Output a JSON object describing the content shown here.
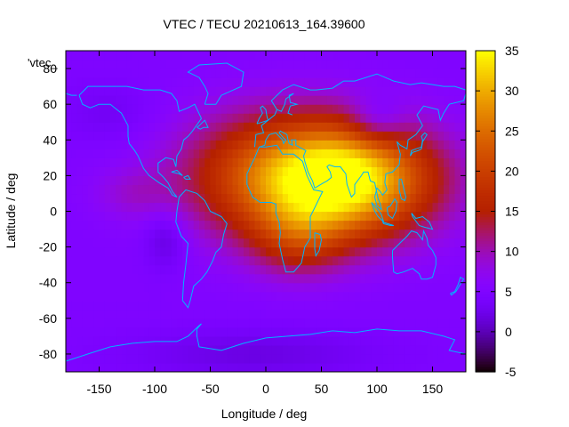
{
  "chart_data": {
    "type": "heatmap",
    "title": "VTEC / TECU 20210613_164.39600",
    "xlabel": "Longitude / deg",
    "ylabel": "Latitude / deg",
    "key_label": "'vtec_",
    "xlim": [
      -180,
      180
    ],
    "ylim": [
      -90,
      90
    ],
    "zlim": [
      -5,
      35
    ],
    "xticks": [
      -150,
      -100,
      -50,
      0,
      50,
      100,
      150
    ],
    "yticks": [
      -80,
      -60,
      -40,
      -20,
      0,
      20,
      40,
      60,
      80
    ],
    "colorbar_ticks": [
      -5,
      0,
      5,
      10,
      15,
      20,
      25,
      30,
      35
    ],
    "grid": false,
    "background_level": 5,
    "features": [
      {
        "lon": 75,
        "lat": 18,
        "sigma_lon": 55,
        "sigma_lat": 22,
        "amp": 27
      },
      {
        "lon": 5,
        "lat": 20,
        "sigma_lon": 60,
        "sigma_lat": 25,
        "amp": 14
      },
      {
        "lon": 30,
        "lat": -15,
        "sigma_lon": 30,
        "sigma_lat": 15,
        "amp": 8
      },
      {
        "lon": 100,
        "lat": 50,
        "sigma_lon": 18,
        "sigma_lat": 10,
        "amp": -6
      },
      {
        "lon": -90,
        "lat": -15,
        "sigma_lon": 14,
        "sigma_lat": 12,
        "amp": -4
      },
      {
        "lon": -140,
        "lat": 55,
        "sigma_lon": 30,
        "sigma_lat": 12,
        "amp": -2
      },
      {
        "lon": -10,
        "lat": -80,
        "sigma_lon": 80,
        "sigma_lat": 10,
        "amp": -3
      },
      {
        "lon": -120,
        "lat": 10,
        "sigma_lon": 25,
        "sigma_lat": 10,
        "amp": 3
      }
    ],
    "colormap": "gnuplot pm3d (black-blue-purple-red-orange-yellow)",
    "coastline_color": "#00b4ff",
    "coastlines": [
      [
        [
          -168,
          65
        ],
        [
          -160,
          70
        ],
        [
          -140,
          70
        ],
        [
          -125,
          70
        ],
        [
          -110,
          68
        ],
        [
          -95,
          68
        ],
        [
          -85,
          66
        ],
        [
          -80,
          62
        ],
        [
          -78,
          56
        ],
        [
          -70,
          58
        ],
        [
          -64,
          60
        ],
        [
          -58,
          52
        ],
        [
          -66,
          45
        ],
        [
          -70,
          42
        ],
        [
          -74,
          40
        ],
        [
          -76,
          35
        ],
        [
          -80,
          31
        ],
        [
          -81,
          25
        ],
        [
          -83,
          29
        ],
        [
          -90,
          30
        ],
        [
          -97,
          27
        ],
        [
          -97,
          22
        ],
        [
          -92,
          19
        ],
        [
          -88,
          16
        ],
        [
          -84,
          11
        ],
        [
          -80,
          8
        ],
        [
          -84,
          9
        ],
        [
          -88,
          13
        ],
        [
          -96,
          16
        ],
        [
          -105,
          20
        ],
        [
          -110,
          24
        ],
        [
          -115,
          31
        ],
        [
          -118,
          34
        ],
        [
          -123,
          38
        ],
        [
          -124,
          42
        ],
        [
          -124,
          48
        ],
        [
          -130,
          55
        ],
        [
          -140,
          60
        ],
        [
          -150,
          60
        ],
        [
          -158,
          58
        ],
        [
          -165,
          60
        ],
        [
          -168,
          65
        ]
      ],
      [
        [
          -78,
          8
        ],
        [
          -72,
          12
        ],
        [
          -62,
          10
        ],
        [
          -55,
          6
        ],
        [
          -50,
          0
        ],
        [
          -40,
          -3
        ],
        [
          -35,
          -7
        ],
        [
          -38,
          -13
        ],
        [
          -40,
          -20
        ],
        [
          -45,
          -23
        ],
        [
          -48,
          -28
        ],
        [
          -53,
          -34
        ],
        [
          -58,
          -38
        ],
        [
          -65,
          -42
        ],
        [
          -68,
          -50
        ],
        [
          -70,
          -54
        ],
        [
          -75,
          -50
        ],
        [
          -74,
          -40
        ],
        [
          -72,
          -30
        ],
        [
          -70,
          -18
        ],
        [
          -76,
          -14
        ],
        [
          -81,
          -6
        ],
        [
          -80,
          0
        ],
        [
          -78,
          8
        ]
      ],
      [
        [
          -55,
          60
        ],
        [
          -45,
          60
        ],
        [
          -40,
          65
        ],
        [
          -22,
          70
        ],
        [
          -20,
          78
        ],
        [
          -35,
          83
        ],
        [
          -60,
          82
        ],
        [
          -70,
          78
        ],
        [
          -60,
          75
        ],
        [
          -55,
          70
        ],
        [
          -52,
          66
        ],
        [
          -55,
          60
        ]
      ],
      [
        [
          -17,
          21
        ],
        [
          -17,
          15
        ],
        [
          -12,
          8
        ],
        [
          -5,
          5
        ],
        [
          5,
          5
        ],
        [
          9,
          4
        ],
        [
          9,
          -1
        ],
        [
          12,
          -6
        ],
        [
          13,
          -12
        ],
        [
          12,
          -18
        ],
        [
          15,
          -27
        ],
        [
          18,
          -34
        ],
        [
          25,
          -34
        ],
        [
          32,
          -29
        ],
        [
          35,
          -20
        ],
        [
          40,
          -15
        ],
        [
          40,
          -10
        ],
        [
          40,
          -3
        ],
        [
          44,
          2
        ],
        [
          51,
          11
        ],
        [
          43,
          12
        ],
        [
          37,
          20
        ],
        [
          33,
          28
        ],
        [
          25,
          32
        ],
        [
          15,
          32
        ],
        [
          10,
          37
        ],
        [
          0,
          36
        ],
        [
          -6,
          36
        ],
        [
          -10,
          30
        ],
        [
          -17,
          21
        ]
      ],
      [
        [
          -10,
          36
        ],
        [
          -9,
          43
        ],
        [
          -2,
          44
        ],
        [
          -4,
          48
        ],
        [
          2,
          51
        ],
        [
          8,
          54
        ],
        [
          10,
          57
        ],
        [
          5,
          62
        ],
        [
          15,
          68
        ],
        [
          25,
          71
        ],
        [
          40,
          68
        ],
        [
          45,
          68
        ],
        [
          60,
          69
        ],
        [
          70,
          73
        ],
        [
          80,
          73
        ],
        [
          100,
          77
        ],
        [
          115,
          73
        ],
        [
          130,
          71
        ],
        [
          140,
          72
        ],
        [
          160,
          70
        ],
        [
          170,
          70
        ],
        [
          180,
          68
        ]
      ],
      [
        [
          -180,
          66
        ],
        [
          -175,
          65
        ],
        [
          -170,
          65
        ]
      ],
      [
        [
          180,
          66
        ],
        [
          178,
          62
        ],
        [
          165,
          60
        ],
        [
          160,
          55
        ],
        [
          157,
          51
        ],
        [
          155,
          57
        ],
        [
          142,
          59
        ],
        [
          136,
          54
        ],
        [
          141,
          48
        ],
        [
          135,
          43
        ],
        [
          128,
          40
        ],
        [
          127,
          35
        ],
        [
          121,
          37
        ],
        [
          118,
          39
        ],
        [
          121,
          32
        ],
        [
          120,
          26
        ],
        [
          114,
          22
        ],
        [
          108,
          21
        ],
        [
          107,
          16
        ],
        [
          109,
          12
        ],
        [
          105,
          9
        ],
        [
          103,
          11
        ],
        [
          100,
          13
        ],
        [
          98,
          8
        ],
        [
          100,
          3
        ],
        [
          104,
          1
        ],
        [
          103,
          4
        ],
        [
          101,
          7
        ],
        [
          98,
          16
        ],
        [
          94,
          17
        ],
        [
          92,
          22
        ],
        [
          88,
          22
        ],
        [
          86,
          20
        ],
        [
          80,
          15
        ],
        [
          80,
          10
        ],
        [
          77,
          8
        ],
        [
          73,
          15
        ],
        [
          72,
          21
        ],
        [
          67,
          25
        ],
        [
          62,
          25
        ],
        [
          57,
          26
        ],
        [
          55,
          25
        ],
        [
          58,
          22
        ],
        [
          59,
          19
        ],
        [
          55,
          17
        ],
        [
          52,
          16
        ],
        [
          44,
          13
        ],
        [
          42,
          17
        ],
        [
          38,
          22
        ],
        [
          35,
          28
        ],
        [
          34,
          31
        ],
        [
          36,
          34
        ],
        [
          30,
          36
        ],
        [
          27,
          37
        ],
        [
          27,
          40
        ],
        [
          23,
          40
        ],
        [
          24,
          37
        ],
        [
          21,
          38
        ],
        [
          20,
          40
        ],
        [
          19,
          43
        ],
        [
          13,
          45
        ],
        [
          12,
          44
        ],
        [
          16,
          41
        ],
        [
          18,
          40
        ],
        [
          16,
          38
        ],
        [
          15,
          40
        ],
        [
          12,
          42
        ],
        [
          9,
          44
        ],
        [
          3,
          43
        ],
        [
          0,
          40
        ],
        [
          -1,
          37
        ],
        [
          -6,
          36
        ]
      ],
      [
        [
          -8,
          49
        ],
        [
          -6,
          52
        ],
        [
          -3,
          55
        ],
        [
          -5,
          58
        ],
        [
          -3,
          59
        ],
        [
          0,
          57
        ],
        [
          1,
          53
        ],
        [
          2,
          51
        ],
        [
          -3,
          50
        ],
        [
          -8,
          49
        ]
      ],
      [
        [
          24,
          54
        ],
        [
          20,
          55
        ],
        [
          22,
          59
        ],
        [
          28,
          60
        ],
        [
          22,
          61
        ],
        [
          21,
          65
        ],
        [
          25,
          66
        ],
        [
          18,
          63
        ],
        [
          17,
          60
        ],
        [
          14,
          56
        ],
        [
          10,
          57
        ]
      ],
      [
        [
          114,
          -22
        ],
        [
          114,
          -26
        ],
        [
          115,
          -34
        ],
        [
          118,
          -35
        ],
        [
          124,
          -34
        ],
        [
          132,
          -32
        ],
        [
          138,
          -35
        ],
        [
          140,
          -38
        ],
        [
          145,
          -38
        ],
        [
          150,
          -37
        ],
        [
          153,
          -30
        ],
        [
          153,
          -26
        ],
        [
          150,
          -22
        ],
        [
          146,
          -19
        ],
        [
          145,
          -15
        ],
        [
          142,
          -11
        ],
        [
          141,
          -16
        ],
        [
          136,
          -12
        ],
        [
          131,
          -11
        ],
        [
          127,
          -14
        ],
        [
          122,
          -17
        ],
        [
          114,
          -22
        ]
      ],
      [
        [
          166,
          -46
        ],
        [
          170,
          -45
        ],
        [
          173,
          -41
        ],
        [
          175,
          -37
        ],
        [
          178,
          -38
        ],
        [
          176,
          -40
        ],
        [
          174,
          -42
        ],
        [
          171,
          -45
        ],
        [
          167,
          -47
        ],
        [
          166,
          -46
        ]
      ],
      [
        [
          95,
          5
        ],
        [
          98,
          3
        ],
        [
          102,
          0
        ],
        [
          104,
          -2
        ],
        [
          106,
          -6
        ],
        [
          101,
          -3
        ],
        [
          98,
          0
        ],
        [
          95,
          5
        ]
      ],
      [
        [
          105,
          -6
        ],
        [
          110,
          -7
        ],
        [
          115,
          -8
        ],
        [
          112,
          -8
        ],
        [
          106,
          -7
        ],
        [
          105,
          -6
        ]
      ],
      [
        [
          109,
          2
        ],
        [
          110,
          -2
        ],
        [
          114,
          -4
        ],
        [
          117,
          0
        ],
        [
          118,
          5
        ],
        [
          116,
          7
        ],
        [
          112,
          3
        ],
        [
          109,
          2
        ]
      ],
      [
        [
          131,
          -1
        ],
        [
          135,
          -4
        ],
        [
          141,
          -3
        ],
        [
          147,
          -6
        ],
        [
          150,
          -10
        ],
        [
          143,
          -9
        ],
        [
          138,
          -8
        ],
        [
          132,
          -3
        ],
        [
          131,
          -1
        ]
      ],
      [
        [
          130,
          31
        ],
        [
          131,
          34
        ],
        [
          135,
          35
        ],
        [
          140,
          36
        ],
        [
          141,
          40
        ],
        [
          140,
          42
        ],
        [
          143,
          44
        ],
        [
          145,
          43
        ],
        [
          141,
          39
        ],
        [
          140,
          35
        ],
        [
          137,
          34
        ],
        [
          132,
          33
        ],
        [
          130,
          31
        ]
      ],
      [
        [
          44,
          -12
        ],
        [
          49,
          -13
        ],
        [
          50,
          -16
        ],
        [
          48,
          -22
        ],
        [
          45,
          -25
        ],
        [
          44,
          -21
        ],
        [
          44,
          -12
        ]
      ],
      [
        [
          -180,
          -84
        ],
        [
          -160,
          -80
        ],
        [
          -140,
          -76
        ],
        [
          -120,
          -74
        ],
        [
          -100,
          -73
        ],
        [
          -80,
          -73
        ],
        [
          -70,
          -70
        ],
        [
          -60,
          -64
        ],
        [
          -58,
          -63
        ],
        [
          -62,
          -66
        ],
        [
          -62,
          -70
        ],
        [
          -60,
          -76
        ],
        [
          -40,
          -78
        ],
        [
          -20,
          -74
        ],
        [
          0,
          -71
        ],
        [
          20,
          -70
        ],
        [
          40,
          -69
        ],
        [
          60,
          -67
        ],
        [
          80,
          -68
        ],
        [
          100,
          -66
        ],
        [
          120,
          -67
        ],
        [
          140,
          -67
        ],
        [
          160,
          -70
        ],
        [
          170,
          -72
        ],
        [
          165,
          -78
        ],
        [
          180,
          -80
        ]
      ],
      [
        [
          -85,
          22
        ],
        [
          -80,
          23
        ],
        [
          -75,
          20
        ],
        [
          -78,
          21
        ],
        [
          -85,
          22
        ]
      ],
      [
        [
          -74,
          19
        ],
        [
          -70,
          20
        ],
        [
          -68,
          18
        ],
        [
          -72,
          18
        ],
        [
          -74,
          19
        ]
      ],
      [
        [
          120,
          18
        ],
        [
          122,
          18
        ],
        [
          124,
          13
        ],
        [
          126,
          8
        ],
        [
          125,
          6
        ],
        [
          122,
          7
        ],
        [
          120,
          12
        ],
        [
          120,
          18
        ]
      ],
      [
        [
          -62,
          47
        ],
        [
          -60,
          48
        ],
        [
          -55,
          51
        ],
        [
          -52,
          47
        ],
        [
          -56,
          47
        ],
        [
          -59,
          46
        ],
        [
          -62,
          47
        ]
      ]
    ]
  }
}
